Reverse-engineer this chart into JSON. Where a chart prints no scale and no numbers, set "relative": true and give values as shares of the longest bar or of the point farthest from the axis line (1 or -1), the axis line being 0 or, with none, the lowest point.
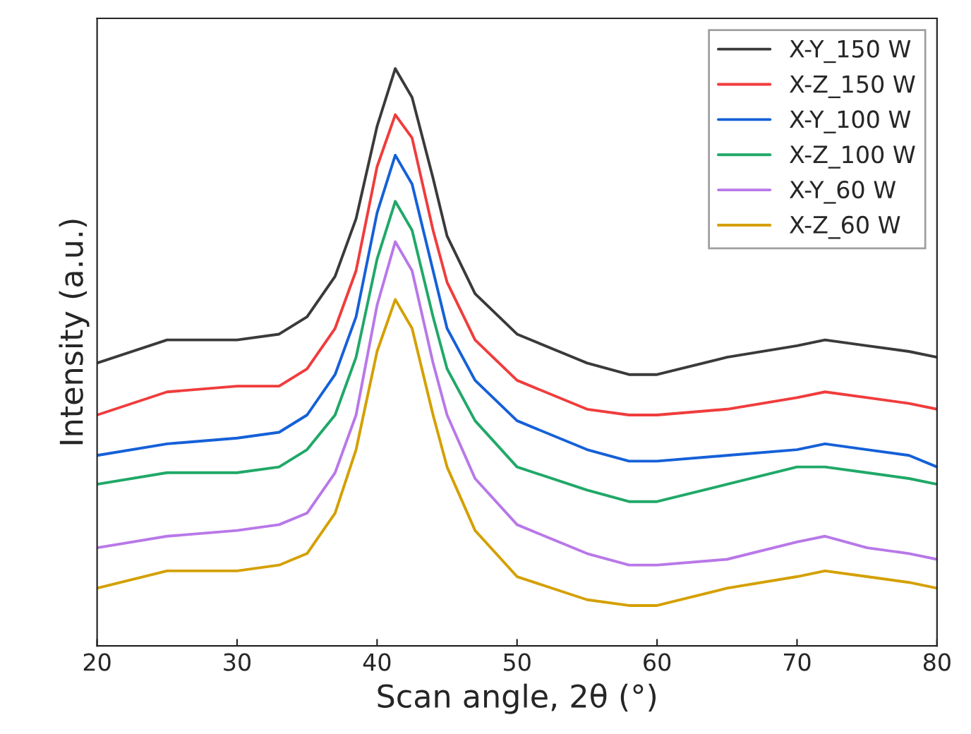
{
  "chart_data": {
    "type": "line",
    "xlabel": "Scan angle, 2θ (°)",
    "ylabel": "Intensity (a.u.)",
    "relative": true,
    "x": [
      20,
      25,
      30,
      33,
      35,
      37,
      38.5,
      40,
      41.3,
      42.5,
      44,
      45,
      47,
      50,
      55,
      58,
      60,
      65,
      70,
      72,
      75,
      78,
      80
    ],
    "xlim": [
      20,
      80
    ],
    "xticks": [
      20,
      30,
      40,
      50,
      60,
      70,
      80
    ],
    "legend": "top right",
    "grid": false,
    "line_style": "solid",
    "series": [
      {
        "name": "X-Y_150 W",
        "color": "#3a3a3a",
        "values": [
          0.49,
          0.53,
          0.53,
          0.54,
          0.57,
          0.64,
          0.74,
          0.9,
          1.0,
          0.95,
          0.81,
          0.71,
          0.61,
          0.54,
          0.49,
          0.47,
          0.47,
          0.5,
          0.52,
          0.53,
          0.52,
          0.51,
          0.5
        ]
      },
      {
        "name": "X-Z_150 W",
        "color": "#f03c3c",
        "values": [
          0.4,
          0.44,
          0.45,
          0.45,
          0.48,
          0.55,
          0.65,
          0.83,
          0.92,
          0.88,
          0.72,
          0.63,
          0.53,
          0.46,
          0.41,
          0.4,
          0.4,
          0.41,
          0.43,
          0.44,
          0.43,
          0.42,
          0.41
        ]
      },
      {
        "name": "X-Y_100 W",
        "color": "#1560d8",
        "values": [
          0.33,
          0.35,
          0.36,
          0.37,
          0.4,
          0.47,
          0.57,
          0.75,
          0.85,
          0.8,
          0.65,
          0.55,
          0.46,
          0.39,
          0.34,
          0.32,
          0.32,
          0.33,
          0.34,
          0.35,
          0.34,
          0.33,
          0.31
        ]
      },
      {
        "name": "X-Z_100 W",
        "color": "#20a868",
        "values": [
          0.28,
          0.3,
          0.3,
          0.31,
          0.34,
          0.4,
          0.5,
          0.67,
          0.77,
          0.72,
          0.57,
          0.48,
          0.39,
          0.31,
          0.27,
          0.25,
          0.25,
          0.28,
          0.31,
          0.31,
          0.3,
          0.29,
          0.28
        ]
      },
      {
        "name": "X-Y_60 W",
        "color": "#b878e8",
        "values": [
          0.17,
          0.19,
          0.2,
          0.21,
          0.23,
          0.3,
          0.4,
          0.59,
          0.7,
          0.65,
          0.49,
          0.4,
          0.29,
          0.21,
          0.16,
          0.14,
          0.14,
          0.15,
          0.18,
          0.19,
          0.17,
          0.16,
          0.15
        ]
      },
      {
        "name": "X-Z_60 W",
        "color": "#d4a000",
        "values": [
          0.1,
          0.13,
          0.13,
          0.14,
          0.16,
          0.23,
          0.34,
          0.51,
          0.6,
          0.55,
          0.4,
          0.31,
          0.2,
          0.12,
          0.08,
          0.07,
          0.07,
          0.1,
          0.12,
          0.13,
          0.12,
          0.11,
          0.1
        ]
      }
    ]
  }
}
